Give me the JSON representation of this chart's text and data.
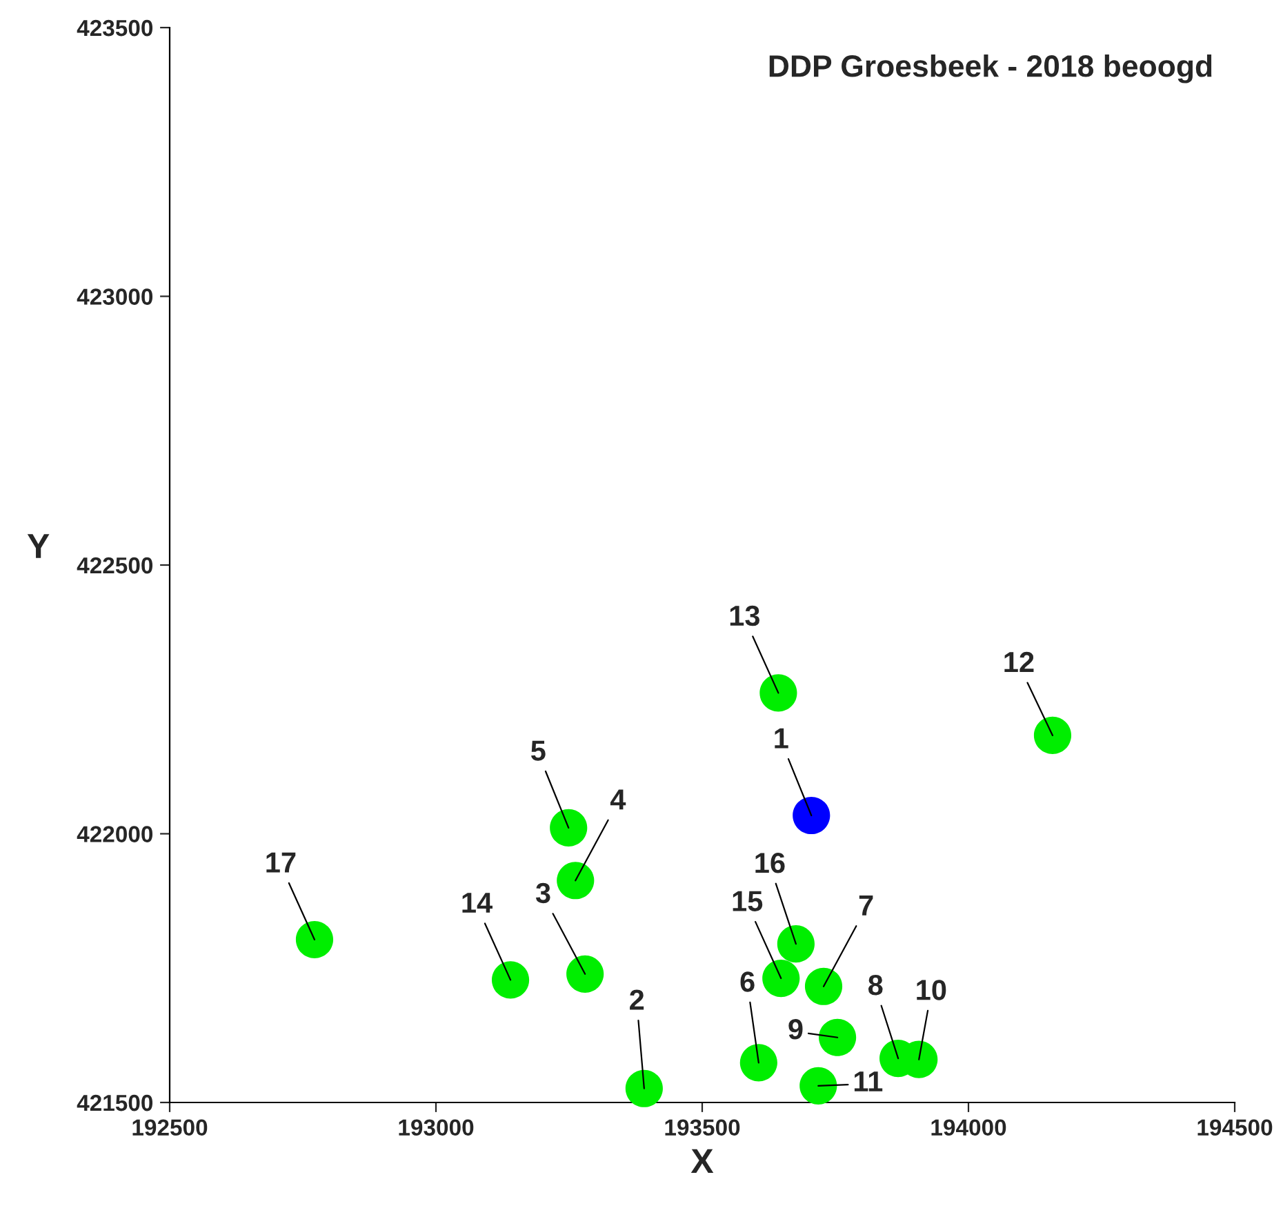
{
  "chart_data": {
    "type": "scatter",
    "title": "DDP Groesbeek - 2018 beoogd",
    "xlabel": "X",
    "ylabel": "Y",
    "x": [
      193705,
      193391,
      193280,
      193262,
      193249,
      193606,
      193728,
      193868,
      193754,
      193907,
      193718,
      194158,
      193643,
      193140,
      193648,
      193676,
      192772
    ],
    "values": [
      422034,
      421526,
      421739,
      421913,
      422011,
      421574,
      421716,
      421582,
      421621,
      421580,
      421531,
      422183,
      422262,
      421728,
      421731,
      421795,
      421803
    ],
    "colors": [
      "#0000ff",
      "#00ee00",
      "#00ee00",
      "#00ee00",
      "#00ee00",
      "#00ee00",
      "#00ee00",
      "#00ee00",
      "#00ee00",
      "#00ee00",
      "#00ee00",
      "#00ee00",
      "#00ee00",
      "#00ee00",
      "#00ee00",
      "#00ee00",
      "#00ee00"
    ],
    "annotations": [
      {
        "text": "1",
        "x": 193705,
        "y": 422034
      },
      {
        "text": "2",
        "x": 193391,
        "y": 421526
      },
      {
        "text": "3",
        "x": 193280,
        "y": 421739
      },
      {
        "text": "4",
        "x": 193262,
        "y": 421913
      },
      {
        "text": "5",
        "x": 193249,
        "y": 422011
      },
      {
        "text": "6",
        "x": 193606,
        "y": 421574
      },
      {
        "text": "7",
        "x": 193728,
        "y": 421716
      },
      {
        "text": "8",
        "x": 193868,
        "y": 421582
      },
      {
        "text": "9",
        "x": 193754,
        "y": 421621
      },
      {
        "text": "10",
        "x": 193907,
        "y": 421580
      },
      {
        "text": "11",
        "x": 193718,
        "y": 421531
      },
      {
        "text": "12",
        "x": 194158,
        "y": 422183
      },
      {
        "text": "13",
        "x": 193643,
        "y": 422262
      },
      {
        "text": "14",
        "x": 193140,
        "y": 421728
      },
      {
        "text": "15",
        "x": 193648,
        "y": 421731
      },
      {
        "text": "16",
        "x": 193676,
        "y": 421795
      },
      {
        "text": "17",
        "x": 192772,
        "y": 421803
      }
    ],
    "xlim": [
      192500,
      194500
    ],
    "ylim": [
      421500,
      423500
    ],
    "xticks": [
      192500,
      193000,
      193500,
      194000,
      194500
    ],
    "yticks": [
      421500,
      422000,
      422500,
      423000,
      423500
    ],
    "marker": "circle",
    "grid": false,
    "legend": false
  }
}
